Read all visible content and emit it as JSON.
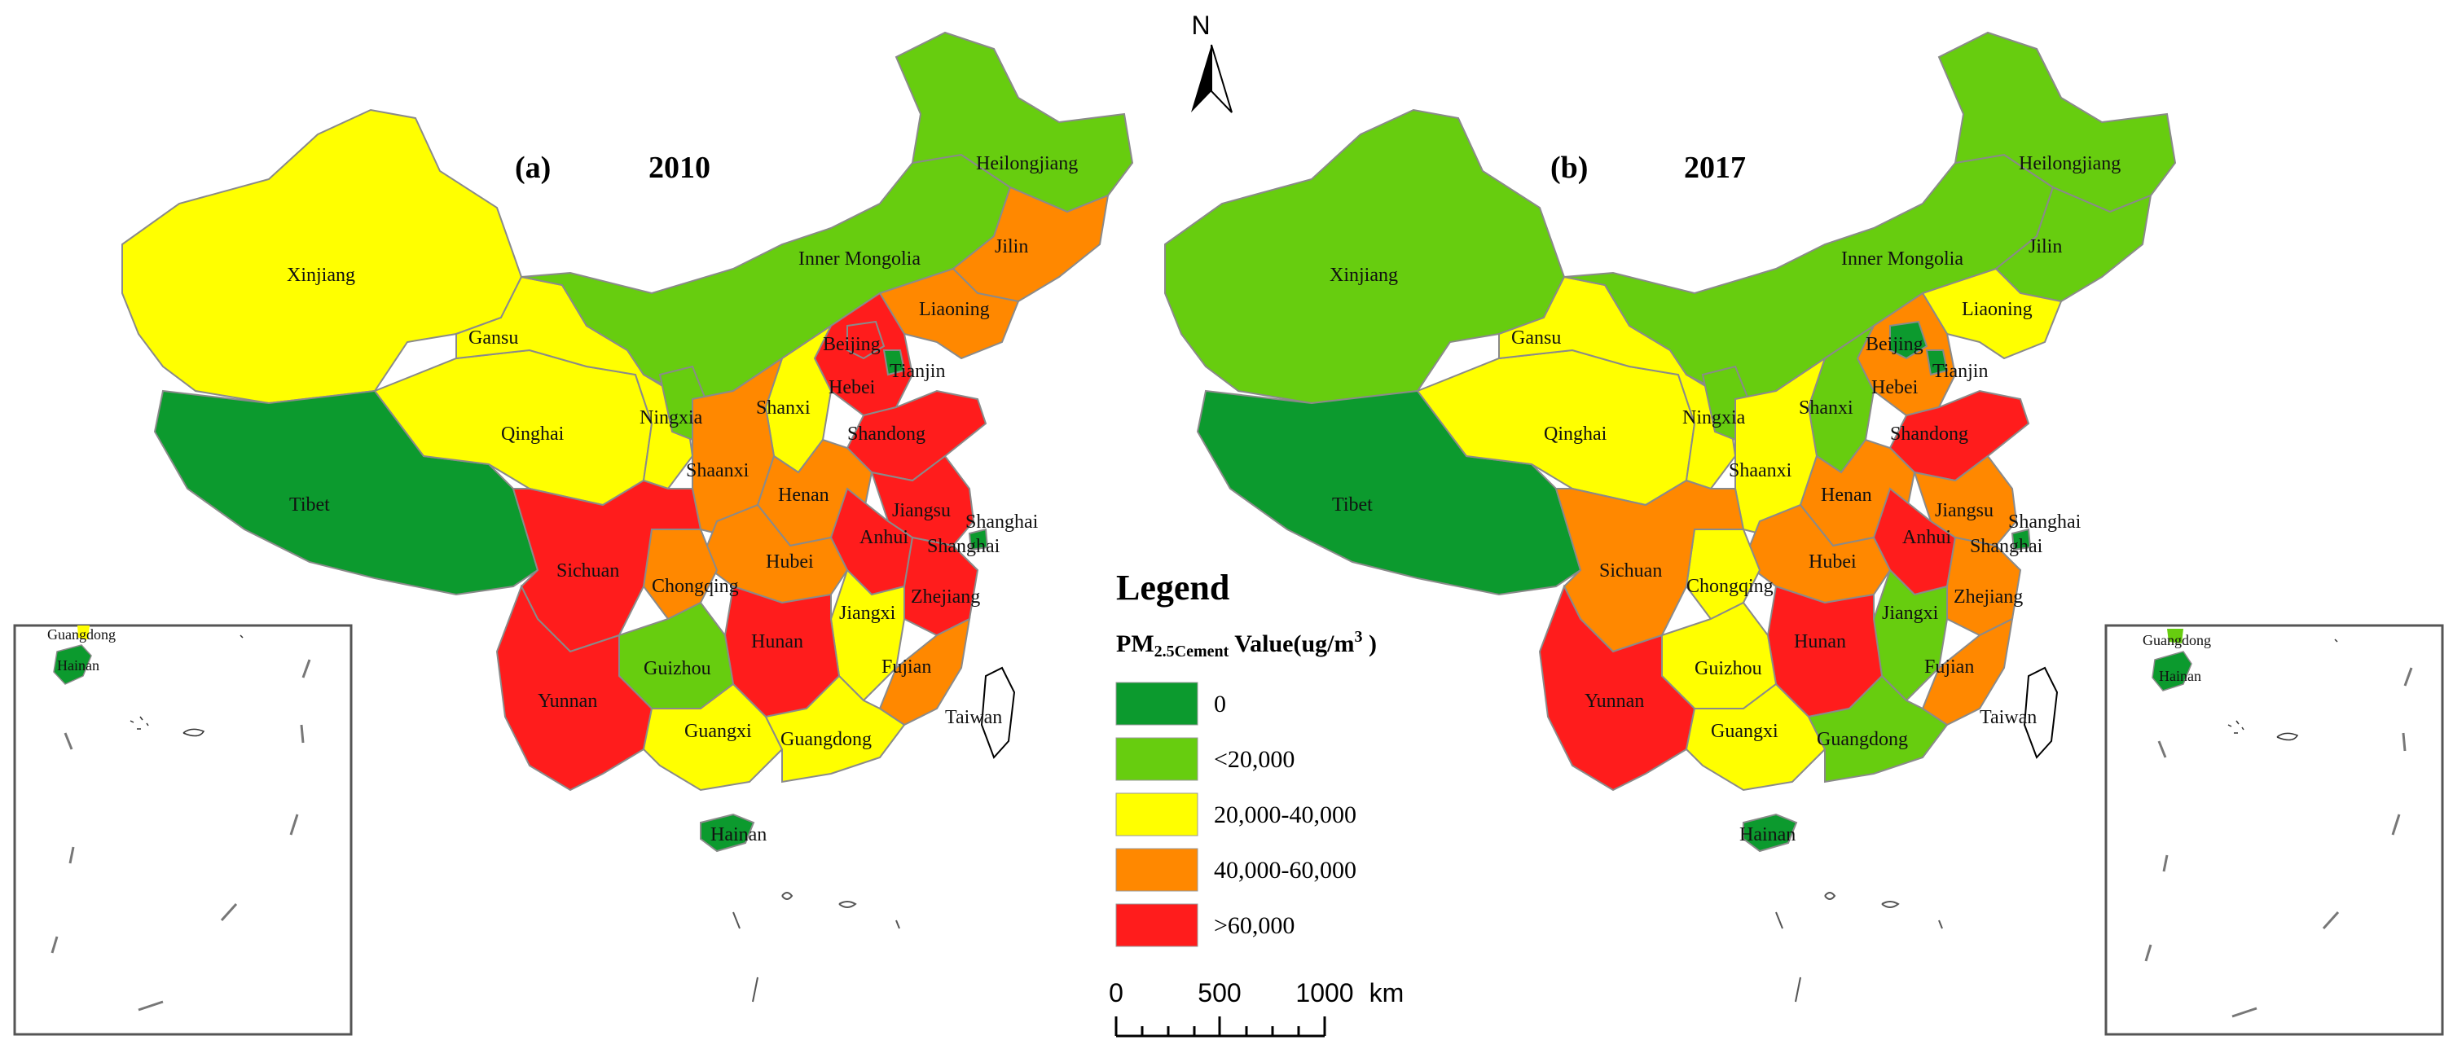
{
  "colors": {
    "c0": "#0c9a2e",
    "c20k": "#67cd0f",
    "c40k": "#ffff00",
    "c60k": "#ff8800",
    "cmax": "#ff1c1c",
    "border": "#8a8a8a"
  },
  "north": {
    "label": "N"
  },
  "panels": {
    "a": {
      "letter": "(a)",
      "year": "2010",
      "provinces": {
        "xinjiang": "Xinjiang",
        "tibet": "Tibet",
        "qinghai": "Qinghai",
        "gansu": "Gansu",
        "inner_mongolia": "Inner Mongolia",
        "heilongjiang": "Heilongjiang",
        "jilin": "Jilin",
        "liaoning": "Liaoning",
        "beijing": "Beijing",
        "tianjin": "Tianjin",
        "hebei": "Hebei",
        "ningxia": "Ningxia",
        "shanxi": "Shanxi",
        "shandong": "Shandong",
        "shaanxi": "Shaanxi",
        "henan": "Henan",
        "jiangsu": "Jiangsu",
        "shanghai_upper": "Shanghai",
        "shanghai_lower": "Shanghai",
        "anhui": "Anhui",
        "hubei": "Hubei",
        "sichuan": "Sichuan",
        "chongqing": "Chongqing",
        "zhejiang": "Zhejiang",
        "jiangxi": "Jiangxi",
        "hunan": "Hunan",
        "guizhou": "Guizhou",
        "fujian": "Fujian",
        "yunnan": "Yunnan",
        "guangxi": "Guangxi",
        "guangdong": "Guangdong",
        "taiwan": "Taiwan",
        "hainan": "Hainan"
      },
      "inset": {
        "guangdong": "Guangdong",
        "hainan": "Hainan"
      }
    },
    "b": {
      "letter": "(b)",
      "year": "2017",
      "provinces": {
        "xinjiang": "Xinjiang",
        "tibet": "Tibet",
        "qinghai": "Qinghai",
        "gansu": "Gansu",
        "inner_mongolia": "Inner Mongolia",
        "heilongjiang": "Heilongjiang",
        "jilin": "Jilin",
        "liaoning": "Liaoning",
        "beijing": "Beijing",
        "tianjin": "Tianjin",
        "hebei": "Hebei",
        "ningxia": "Ningxia",
        "shanxi": "Shanxi",
        "shandong": "Shandong",
        "shaanxi": "Shaanxi",
        "henan": "Henan",
        "jiangsu": "Jiangsu",
        "shanghai_upper": "Shanghai",
        "shanghai_lower": "Shanghai",
        "anhui": "Anhui",
        "hubei": "Hubei",
        "sichuan": "Sichuan",
        "chongqing": "Chongqing",
        "zhejiang": "Zhejiang",
        "jiangxi": "Jiangxi",
        "hunan": "Hunan",
        "guizhou": "Guizhou",
        "fujian": "Fujian",
        "yunnan": "Yunnan",
        "guangxi": "Guangxi",
        "guangdong": "Guangdong",
        "taiwan": "Taiwan",
        "hainan": "Hainan"
      },
      "inset": {
        "guangdong": "Guangdong",
        "hainan": "Hainan"
      }
    }
  },
  "legend": {
    "title": "Legend",
    "sub_main": "PM",
    "sub_small": "2.5Cement",
    "sub_rest": " Value(ug/m",
    "sub_sup": "3",
    "sub_close": " )",
    "items": [
      "0",
      "<20,000",
      "20,000-40,000",
      "40,000-60,000",
      ">60,000"
    ]
  },
  "scale": {
    "ticks": [
      "0",
      "500",
      "1000"
    ],
    "unit": "km"
  }
}
